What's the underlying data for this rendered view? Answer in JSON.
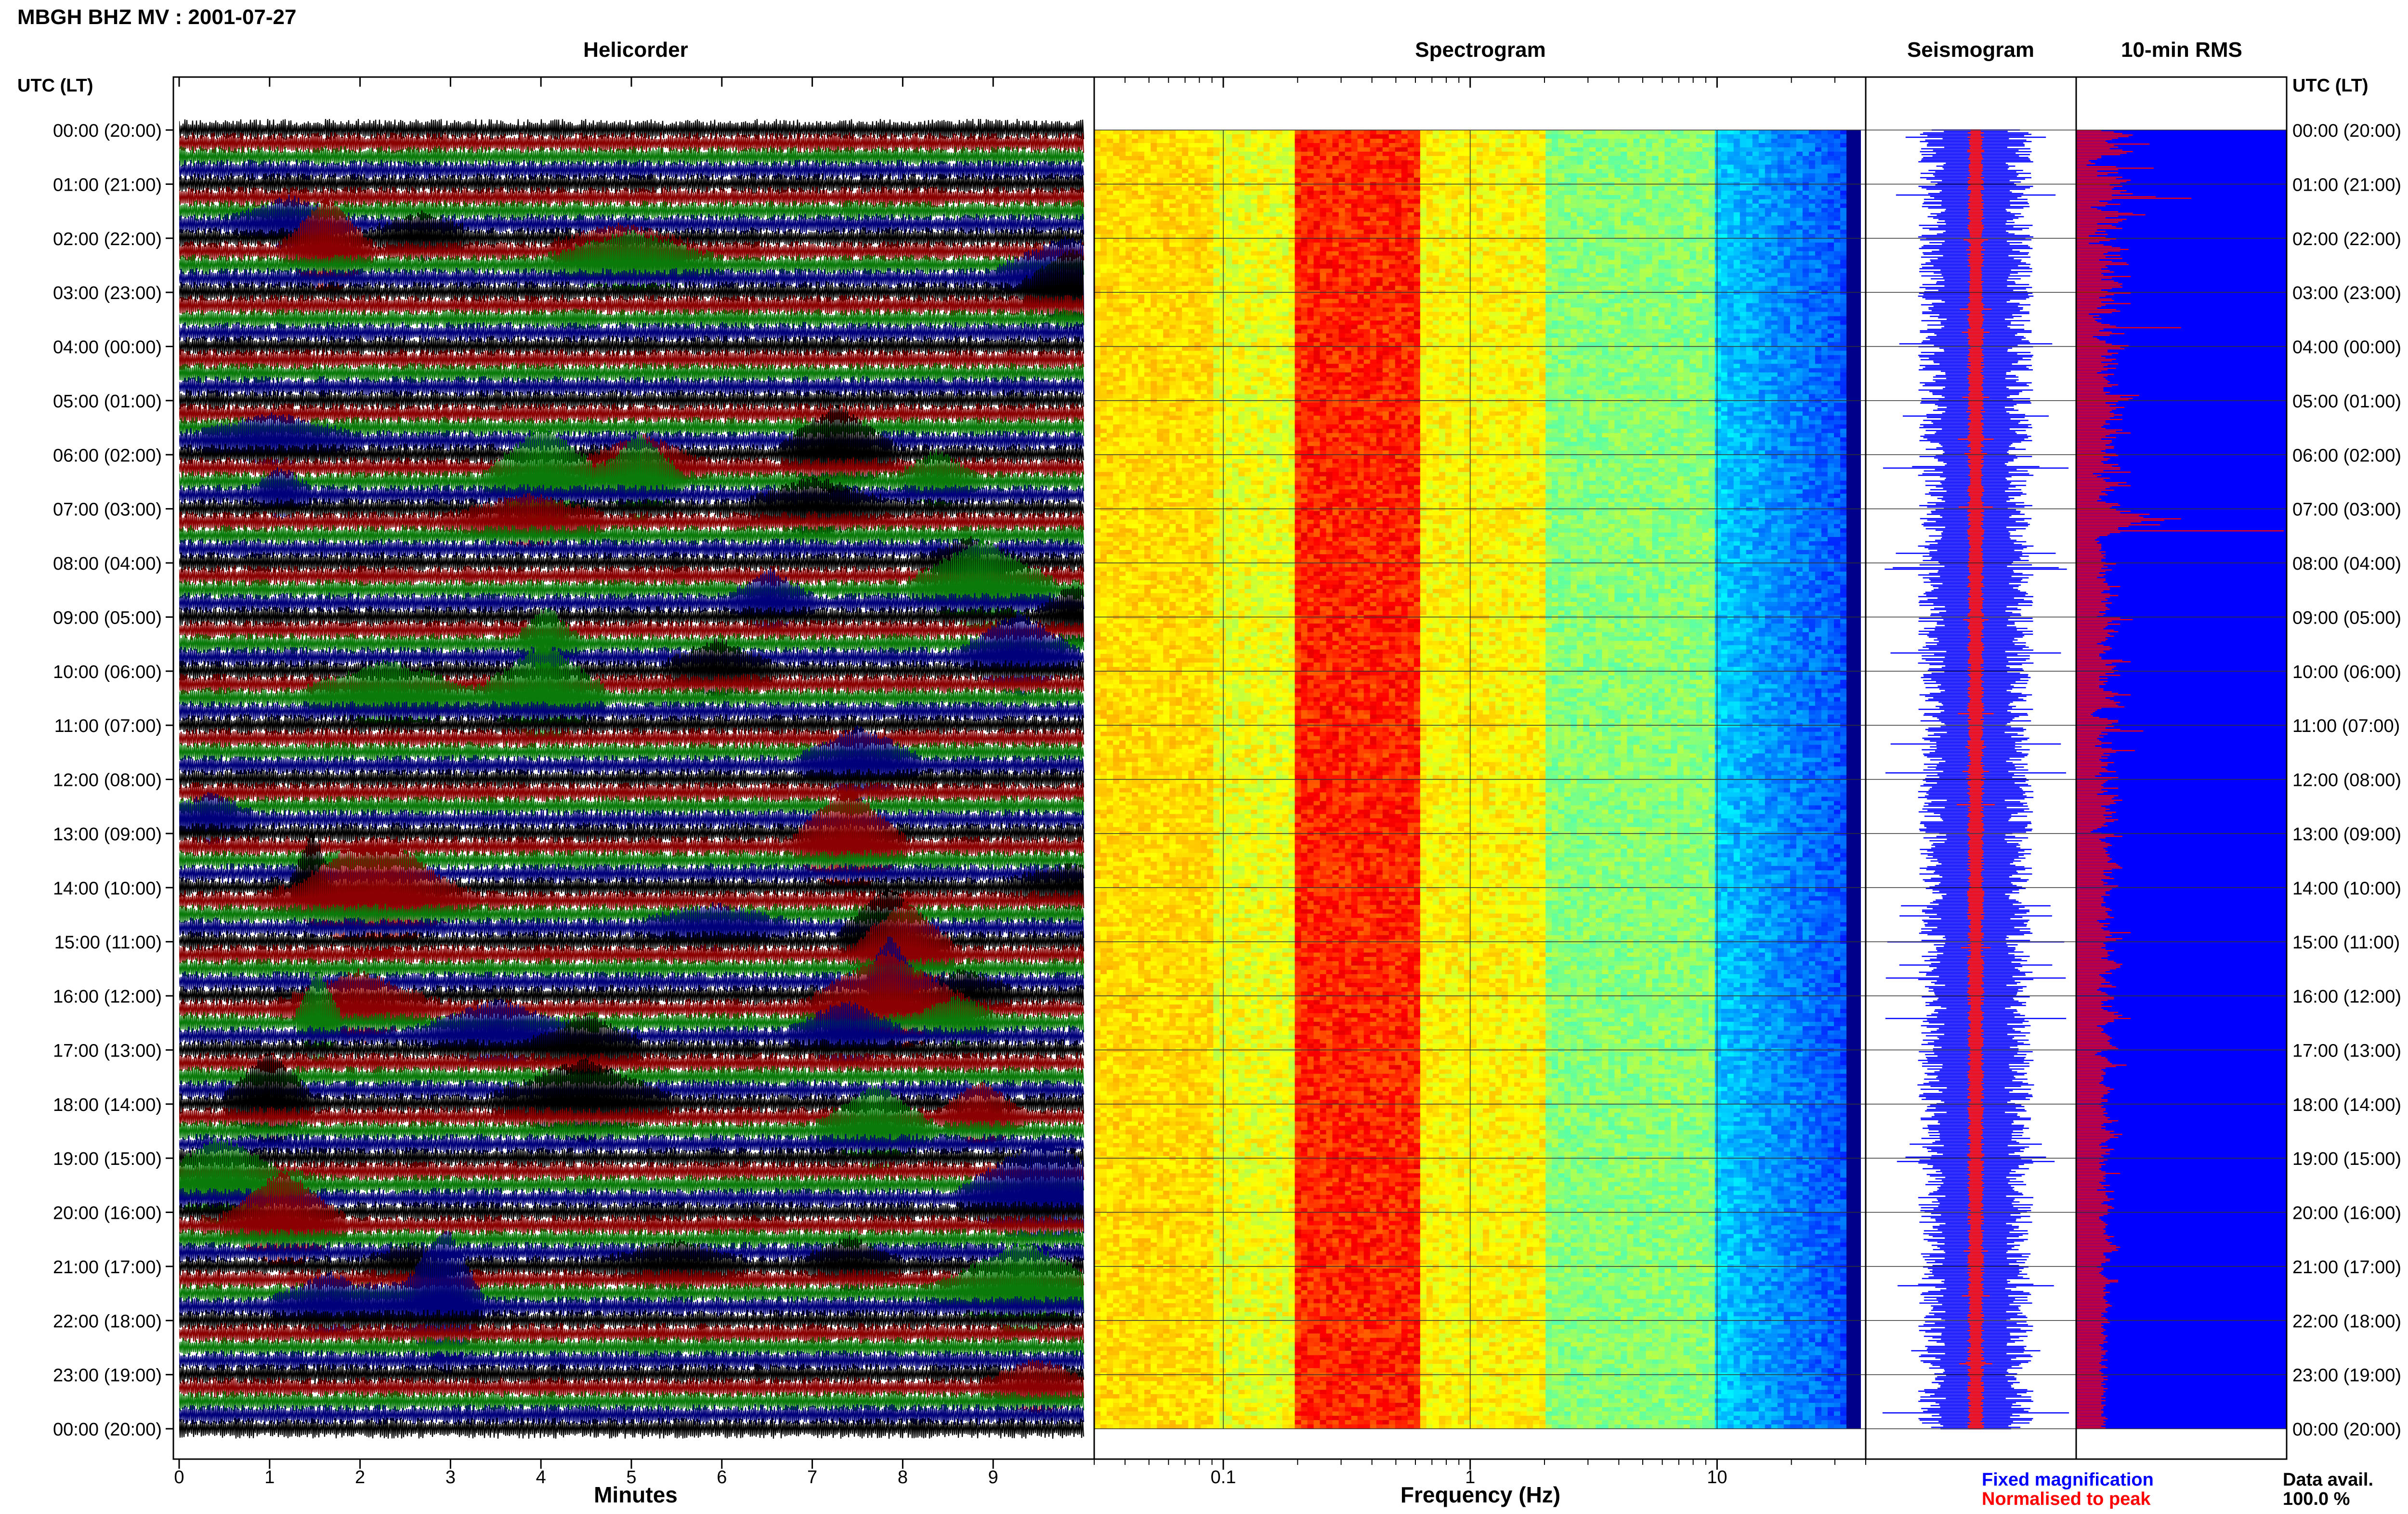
{
  "header": {
    "title": "MBGH BHZ MV : 2001-07-27",
    "utc_left": "UTC (LT)",
    "utc_right": "UTC (LT)"
  },
  "panels": {
    "helicorder_title": "Helicorder",
    "spectrogram_title": "Spectrogram",
    "seismogram_title": "Seismogram",
    "rms_title": "10-min RMS"
  },
  "axes": {
    "minutes_label": "Minutes",
    "frequency_label": "Frequency (Hz)"
  },
  "legend": {
    "fixed": "Fixed magnification",
    "normalised": "Normalised to peak",
    "data_avail_label": "Data avail.",
    "data_avail_value": "100.0 %"
  },
  "colors": {
    "trace_black": "#000000",
    "trace_red": "#8b0000",
    "trace_green": "#0a7a0a",
    "trace_blue": "#00007a",
    "fixed_blue": "#0000ff",
    "normalised_red": "#ff0000",
    "rms_blue": "#0000ff",
    "rms_red": "#ff0000"
  },
  "chart_data": [
    {
      "type": "line",
      "name_in_ui": "Helicorder",
      "xlabel": "Minutes",
      "xlim": [
        0,
        10
      ],
      "x_ticks": [
        0,
        1,
        2,
        3,
        4,
        5,
        6,
        7,
        8,
        9
      ],
      "trace_color_cycle": [
        "black",
        "red",
        "green",
        "blue"
      ],
      "row_labels": [
        "00:00 (20:00)",
        "01:00 (21:00)",
        "02:00 (22:00)",
        "03:00 (23:00)",
        "04:00 (00:00)",
        "05:00 (01:00)",
        "06:00 (02:00)",
        "07:00 (03:00)",
        "08:00 (04:00)",
        "09:00 (05:00)",
        "10:00 (06:00)",
        "11:00 (07:00)",
        "12:00 (08:00)",
        "13:00 (09:00)",
        "14:00 (10:00)",
        "15:00 (11:00)",
        "16:00 (12:00)",
        "17:00 (13:00)",
        "18:00 (14:00)",
        "19:00 (15:00)",
        "20:00 (16:00)",
        "21:00 (17:00)",
        "22:00 (18:00)",
        "23:00 (19:00)",
        "00:00 (20:00)"
      ]
    },
    {
      "type": "heatmap",
      "name_in_ui": "Spectrogram",
      "xlabel": "Frequency (Hz)",
      "x_scale": "log",
      "xlim": [
        0.03,
        40
      ],
      "x_tick_labels": [
        "0.1",
        "1",
        "10"
      ],
      "colormap": "jet"
    },
    {
      "type": "line",
      "name_in_ui": "Seismogram",
      "series": [
        {
          "name": "Fixed magnification",
          "color": "blue"
        },
        {
          "name": "Normalised to peak",
          "color": "red"
        }
      ]
    },
    {
      "type": "bar",
      "name_in_ui": "10-min RMS",
      "bar_color": "red",
      "background_color": "blue",
      "values": [
        0.12,
        0.18,
        0.22,
        0.27,
        0.25,
        0.2,
        0.17,
        0.14,
        0.15,
        0.35,
        0.18,
        0.2,
        0.16,
        0.22,
        0.27,
        0.24,
        0.21,
        0.12,
        0.12,
        0.1,
        0.06,
        0.07,
        0.09,
        0.05,
        0.19,
        0.37,
        0.2,
        0.1,
        0.2,
        0.15,
        0.1,
        0.22,
        0.19,
        0.26,
        0.24,
        0.21,
        0.16,
        0.22,
        0.18,
        0.17,
        0.24,
        0.21,
        0.27,
        0.17,
        0.38,
        0.55,
        0.17,
        0.11,
        0.15,
        0.21,
        0.14,
        0.07,
        0.1,
        0.12,
        0.2,
        0.27,
        0.33,
        0.2,
        0.14,
        0.24,
        0.22,
        0.2,
        0.1,
        0.17,
        0.19,
        0.22,
        0.1,
        0.14,
        0.09,
        0.15,
        0.06,
        0.14,
        0.19,
        0.16,
        0.11,
        0.06,
        0.13,
        0.17,
        0.21,
        0.25,
        0.21,
        0.15,
        0.13,
        0.21,
        0.14,
        0.22,
        0.11,
        0.17,
        0.24,
        0.25,
        0.14,
        0.15,
        0.12,
        0.16,
        0.18,
        0.12,
        0.13,
        0.26,
        0.17,
        0.12,
        0.18,
        0.2,
        0.22,
        0.21,
        0.22,
        0.17,
        0.12,
        0.15,
        0.26,
        0.18,
        0.14,
        0.11,
        0.17,
        0.18,
        0.12,
        0.26,
        0.14,
        0.12,
        0.1,
        0.19,
        0.21,
        0.17,
        0.06,
        0.11,
        0.08,
        0.12,
        0.09,
        0.1,
        0.12,
        0.16,
        0.19,
        0.5,
        0.13,
        0.11,
        0.17,
        0.23,
        0.16,
        0.08,
        0.1,
        0.11,
        0.14,
        0.14,
        0.17,
        0.25,
        0.21,
        0.23,
        0.15,
        0.15,
        0.2,
        0.17,
        0.12,
        0.14,
        0.19,
        0.17,
        0.12,
        0.2,
        0.15,
        0.13,
        0.19,
        0.15,
        0.12,
        0.1,
        0.18,
        0.15,
        0.13,
        0.14,
        0.15,
        0.16,
        0.15,
        0.2,
        0.17,
        0.13,
        0.13,
        0.13,
        0.16,
        0.14,
        0.3,
        0.21,
        0.27,
        0.25,
        0.2,
        0.14,
        0.19,
        0.16,
        0.23,
        0.19,
        0.17,
        0.16,
        0.18,
        0.22,
        0.18,
        0.16,
        0.22,
        0.14,
        0.14,
        0.16,
        0.13,
        0.12,
        0.14,
        0.22,
        0.19,
        0.26,
        0.16,
        0.14,
        0.19,
        0.12,
        0.17,
        0.17,
        0.16,
        0.14,
        0.18,
        0.18,
        0.14,
        0.12,
        0.14,
        0.19,
        0.2,
        0.13,
        0.16,
        0.15,
        0.12,
        0.13,
        0.2,
        0.17,
        0.21,
        0.21,
        0.13,
        0.26,
        0.08,
        0.12,
        0.1,
        0.16,
        0.13,
        0.14,
        0.24,
        0.2,
        0.26,
        0.16,
        0.14,
        0.18,
        0.12,
        0.14,
        0.15,
        0.11,
        0.11,
        0.12,
        0.1,
        0.14,
        0.2,
        0.21,
        0.17,
        0.16,
        0.19,
        0.26,
        0.21,
        0.35,
        0.3,
        0.32,
        0.5,
        0.42,
        0.31,
        0.26,
        0.4,
        0.25,
        0.2,
        0.2,
        0.99,
        0.21,
        0.16,
        0.15,
        0.11,
        0.1,
        0.09,
        0.11,
        0.1,
        0.12,
        0.12,
        0.12,
        0.12,
        0.11,
        0.14,
        0.12,
        0.14,
        0.13,
        0.14,
        0.12,
        0.12,
        0.14,
        0.19,
        0.13,
        0.15,
        0.12,
        0.17,
        0.14,
        0.11,
        0.14,
        0.13,
        0.1,
        0.14,
        0.14,
        0.13,
        0.15,
        0.15,
        0.21,
        0.16,
        0.16,
        0.13,
        0.12,
        0.16,
        0.2,
        0.16,
        0.14,
        0.15,
        0.12,
        0.17,
        0.14,
        0.14,
        0.15,
        0.16,
        0.14,
        0.11,
        0.14,
        0.13,
        0.1,
        0.21,
        0.27,
        0.17,
        0.15,
        0.21,
        0.15,
        0.14,
        0.13,
        0.18,
        0.2,
        0.15,
        0.16,
        0.18,
        0.14,
        0.15,
        0.14,
        0.12,
        0.1,
        0.13,
        0.16,
        0.17,
        0.16,
        0.13,
        0.14,
        0.11,
        0.11,
        0.12,
        0.12,
        0.22,
        0.26,
        0.17,
        0.14,
        0.19,
        0.18,
        0.17,
        0.2,
        0.18,
        0.14,
        0.21,
        0.11,
        0.15,
        0.11,
        0.15,
        0.13,
        0.14,
        0.11,
        0.11,
        0.13,
        0.13,
        0.17,
        0.2,
        0.26,
        0.18,
        0.14,
        0.16,
        0.18,
        0.21,
        0.19,
        0.2,
        0.23,
        0.12,
        0.1,
        0.09,
        0.08,
        0.07,
        0.08,
        0.11,
        0.15,
        0.2,
        0.2,
        0.17,
        0.15,
        0.18,
        0.14,
        0.21,
        0.32,
        0.12,
        0.15,
        0.11,
        0.13,
        0.1,
        0.11,
        0.12,
        0.17,
        0.12,
        0.09,
        0.12,
        0.17,
        0.28,
        0.19,
        0.13,
        0.16,
        0.12,
        0.15,
        0.11,
        0.12,
        0.18,
        0.15,
        0.15,
        0.12,
        0.14,
        0.15,
        0.19,
        0.11,
        0.12,
        0.09,
        0.2,
        0.17,
        0.15,
        0.14,
        0.13,
        0.12,
        0.13,
        0.2,
        0.12,
        0.15,
        0.13,
        0.1,
        0.2,
        0.18,
        0.17,
        0.22,
        0.18,
        0.19,
        0.16,
        0.12,
        0.14,
        0.16,
        0.14,
        0.19,
        0.17,
        0.13,
        0.17,
        0.14,
        0.2,
        0.18,
        0.14,
        0.13,
        0.15,
        0.12,
        0.1,
        0.08,
        0.07,
        0.12,
        0.18,
        0.22,
        0.14,
        0.11,
        0.12,
        0.14,
        0.16,
        0.17,
        0.15,
        0.13,
        0.14,
        0.15,
        0.14,
        0.16,
        0.15,
        0.16,
        0.17,
        0.16,
        0.15,
        0.19,
        0.2,
        0.21,
        0.22,
        0.17,
        0.13,
        0.17,
        0.13,
        0.14,
        0.16,
        0.18,
        0.12,
        0.13,
        0.15,
        0.13,
        0.2,
        0.19,
        0.17,
        0.16,
        0.14,
        0.14,
        0.16,
        0.12,
        0.13,
        0.13,
        0.13,
        0.14,
        0.12,
        0.12,
        0.14,
        0.16,
        0.17,
        0.14,
        0.15,
        0.15,
        0.16,
        0.18,
        0.14,
        0.1,
        0.11,
        0.16,
        0.13,
        0.15,
        0.12,
        0.13,
        0.16,
        0.26,
        0.16,
        0.17,
        0.14,
        0.22,
        0.19,
        0.15,
        0.13,
        0.14,
        0.14,
        0.12,
        0.14,
        0.18,
        0.15,
        0.15,
        0.16,
        0.15,
        0.12,
        0.15,
        0.18,
        0.19,
        0.22,
        0.21,
        0.21,
        0.19,
        0.16,
        0.14,
        0.17,
        0.11,
        0.12,
        0.13,
        0.14,
        0.14,
        0.16,
        0.12,
        0.17,
        0.19,
        0.11,
        0.1,
        0.12,
        0.14,
        0.15,
        0.16,
        0.18,
        0.18,
        0.15,
        0.12,
        0.13,
        0.12,
        0.17,
        0.12,
        0.13,
        0.15,
        0.2,
        0.18,
        0.22,
        0.2,
        0.26,
        0.18,
        0.18,
        0.15,
        0.14,
        0.1,
        0.12,
        0.13,
        0.13,
        0.12,
        0.14,
        0.15,
        0.16,
        0.17,
        0.16,
        0.15,
        0.16,
        0.16,
        0.17,
        0.19,
        0.2,
        0.15,
        0.12,
        0.1,
        0.09,
        0.12,
        0.14,
        0.15,
        0.15,
        0.16,
        0.17,
        0.24,
        0.19,
        0.14,
        0.12,
        0.13,
        0.14,
        0.14,
        0.12,
        0.13,
        0.13,
        0.13,
        0.12,
        0.11,
        0.13,
        0.14,
        0.16,
        0.18,
        0.15,
        0.16,
        0.15,
        0.13,
        0.13,
        0.12,
        0.15,
        0.15,
        0.12,
        0.11,
        0.13,
        0.12,
        0.14,
        0.14,
        0.13,
        0.15,
        0.13,
        0.14,
        0.16,
        0.15,
        0.2,
        0.17,
        0.13,
        0.12,
        0.14,
        0.12,
        0.14,
        0.18,
        0.16,
        0.22,
        0.18,
        0.2,
        0.16,
        0.15,
        0.14,
        0.12,
        0.11,
        0.15,
        0.12,
        0.18,
        0.16,
        0.14,
        0.16,
        0.12,
        0.13,
        0.11,
        0.15,
        0.13,
        0.11,
        0.14,
        0.12,
        0.12,
        0.11,
        0.12,
        0.14,
        0.21,
        0.14,
        0.13,
        0.14,
        0.13,
        0.14,
        0.11,
        0.12,
        0.16,
        0.13,
        0.14,
        0.1,
        0.18,
        0.14,
        0.14,
        0.15,
        0.15,
        0.18,
        0.16,
        0.13,
        0.12,
        0.15,
        0.17,
        0.18,
        0.15,
        0.15,
        0.16,
        0.15,
        0.13,
        0.11,
        0.11,
        0.12,
        0.13,
        0.14,
        0.15,
        0.14,
        0.14,
        0.13,
        0.14,
        0.14,
        0.13,
        0.15,
        0.18,
        0.16,
        0.14,
        0.15,
        0.17,
        0.16,
        0.19,
        0.21,
        0.19,
        0.2,
        0.17,
        0.13,
        0.13,
        0.14,
        0.14,
        0.16,
        0.16,
        0.14,
        0.12,
        0.12,
        0.1,
        0.13,
        0.13,
        0.12,
        0.11,
        0.12,
        0.13,
        0.14,
        0.15,
        0.2,
        0.2,
        0.16,
        0.14,
        0.14,
        0.13,
        0.14,
        0.13,
        0.16,
        0.14,
        0.14,
        0.13,
        0.13,
        0.14,
        0.15,
        0.14,
        0.16,
        0.17,
        0.15,
        0.14,
        0.14,
        0.15,
        0.12,
        0.13,
        0.12,
        0.14,
        0.15,
        0.15,
        0.16,
        0.12,
        0.13,
        0.12,
        0.13,
        0.14,
        0.13,
        0.12,
        0.13,
        0.15,
        0.14,
        0.14,
        0.13,
        0.15,
        0.13,
        0.11,
        0.12,
        0.13,
        0.12,
        0.15,
        0.14,
        0.14,
        0.12,
        0.13,
        0.12,
        0.15,
        0.12,
        0.11,
        0.12,
        0.14,
        0.15,
        0.12,
        0.11,
        0.12,
        0.13,
        0.12,
        0.15,
        0.13,
        0.15,
        0.13,
        0.12,
        0.14,
        0.12,
        0.13,
        0.15,
        0.13,
        0.14,
        0.13,
        0.13,
        0.12,
        0.14,
        0.12,
        0.14,
        0.12,
        0.12,
        0.14,
        0.13,
        0.13,
        0.12,
        0.13,
        0.13,
        0.12,
        0.12,
        0.14,
        0.15,
        0.13,
        0.14,
        0.13,
        0.14,
        0.12,
        0.14
      ]
    }
  ]
}
